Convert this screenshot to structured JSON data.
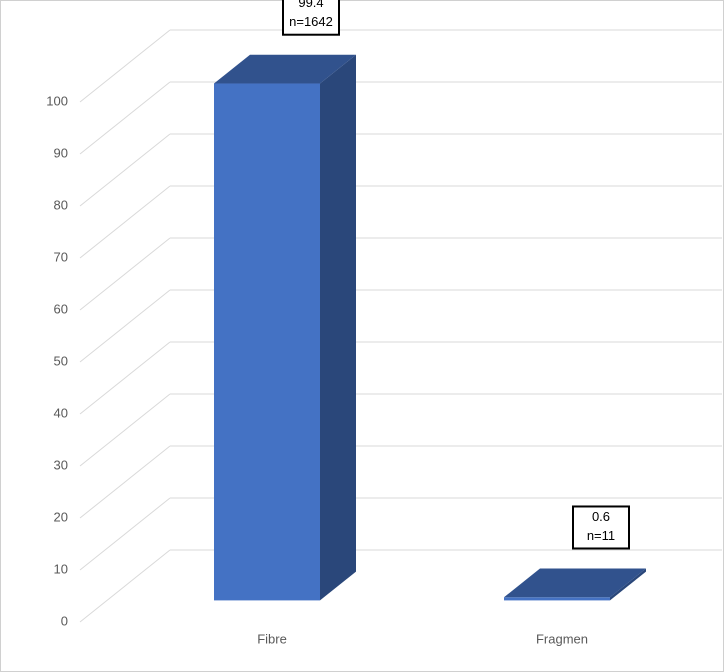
{
  "chart_data": {
    "type": "bar3d",
    "categories": [
      "Fibre",
      "Fragmen"
    ],
    "values": [
      99.4,
      0.6
    ],
    "count_labels": [
      "n=1642",
      "n=11"
    ],
    "color": "#4472c4",
    "ylim": [
      0,
      100
    ],
    "yticks": [
      0,
      10,
      20,
      30,
      40,
      50,
      60,
      70,
      80,
      90,
      100
    ],
    "grid": true
  }
}
